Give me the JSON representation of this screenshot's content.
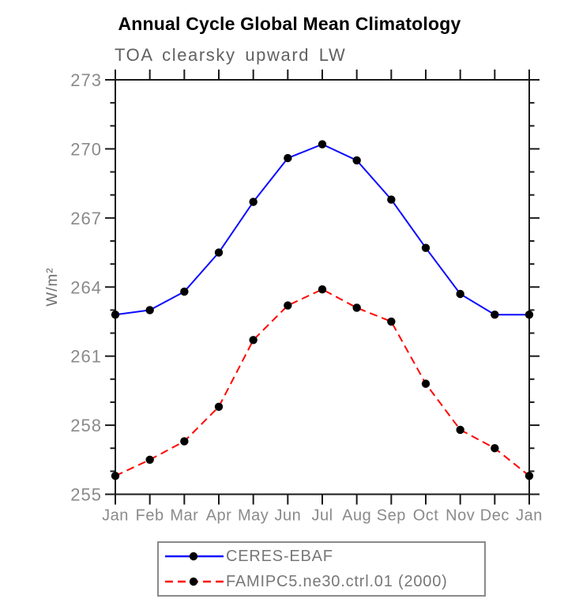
{
  "header": {
    "title": "Annual Cycle Global Mean Climatology",
    "subtitle": "TOA clearsky upward LW"
  },
  "chart_data": {
    "type": "line",
    "title": "Annual Cycle Global Mean Climatology",
    "subtitle": "TOA clearsky upward LW",
    "xlabel": "",
    "ylabel": "W/m²",
    "categories": [
      "Jan",
      "Feb",
      "Mar",
      "Apr",
      "May",
      "Jun",
      "Jul",
      "Aug",
      "Sep",
      "Oct",
      "Nov",
      "Dec",
      "Jan"
    ],
    "ylim": [
      255,
      273
    ],
    "yticks": [
      255,
      258,
      261,
      264,
      267,
      270,
      273
    ],
    "minor_tick_step": 1,
    "grid": false,
    "legend_position": "bottom",
    "marker_color": "#000000",
    "series": [
      {
        "name": "CERES-EBAF",
        "color": "#0a0aff",
        "style": "solid",
        "marker": "filled-circle",
        "values": [
          262.8,
          263.0,
          263.8,
          265.5,
          267.7,
          269.6,
          270.2,
          269.5,
          267.8,
          265.7,
          263.7,
          262.8,
          262.8
        ]
      },
      {
        "name": "FAMIPC5.ne30.ctrl.01 (2000)",
        "color": "#ff0500",
        "style": "dashed",
        "marker": "filled-circle",
        "values": [
          255.8,
          256.5,
          257.3,
          258.8,
          261.7,
          263.2,
          263.9,
          263.1,
          262.5,
          259.8,
          257.8,
          257.0,
          255.8
        ]
      }
    ]
  }
}
